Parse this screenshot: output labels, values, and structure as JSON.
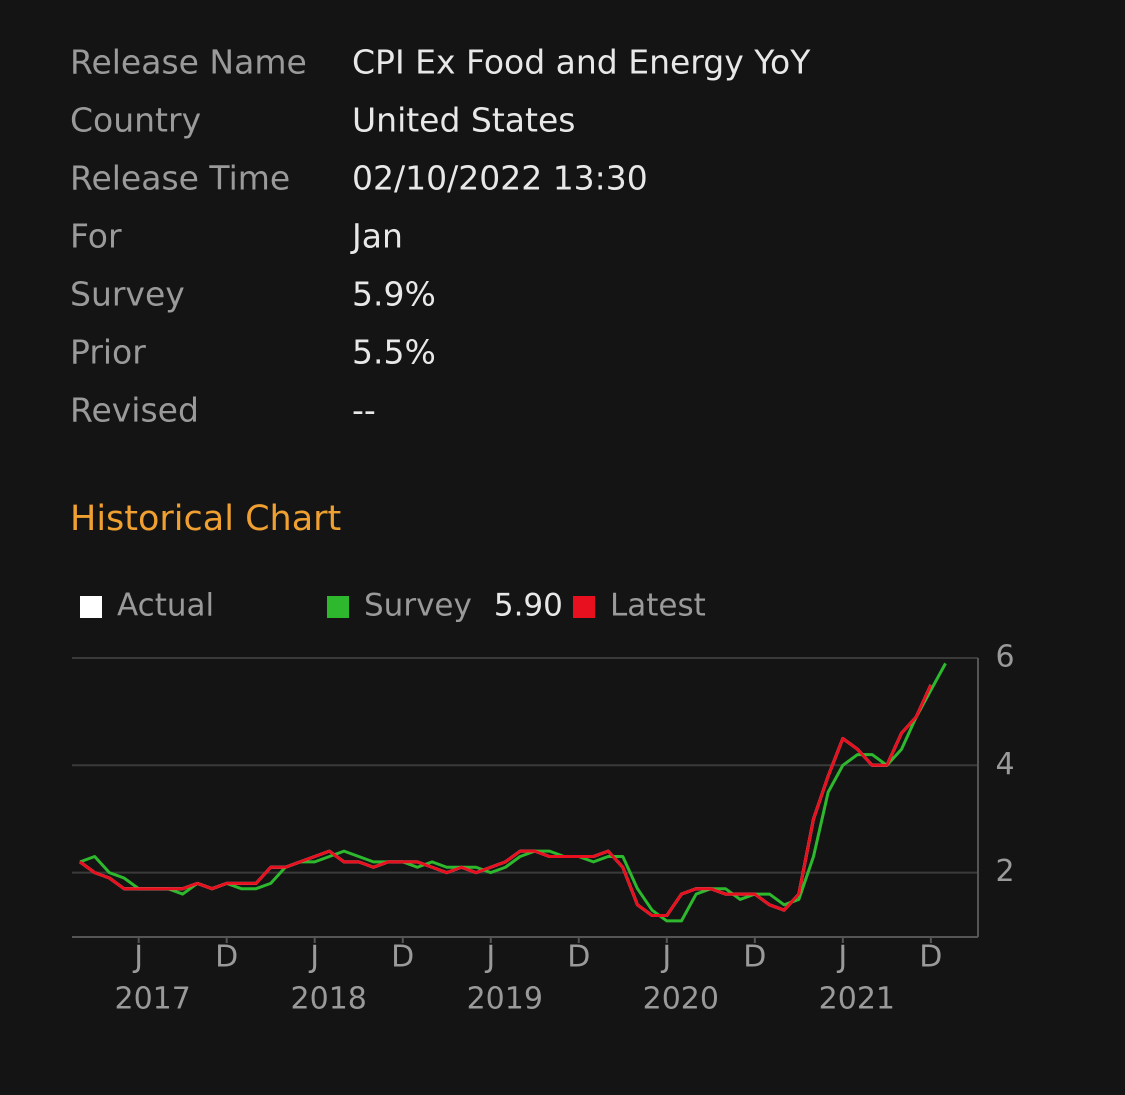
{
  "info": {
    "rows": [
      {
        "label": "Release Name",
        "value": "CPI Ex Food and Energy YoY"
      },
      {
        "label": "Country",
        "value": "United States"
      },
      {
        "label": "Release Time",
        "value": "02/10/2022 13:30"
      },
      {
        "label": "For",
        "value": "Jan"
      },
      {
        "label": "Survey",
        "value": "5.9%"
      },
      {
        "label": "Prior",
        "value": "5.5%"
      },
      {
        "label": "Revised",
        "value": "--"
      }
    ]
  },
  "section_title": "Historical Chart",
  "chart_data": {
    "type": "line",
    "categories": [
      null,
      null,
      null,
      null,
      "J",
      null,
      null,
      null,
      null,
      null,
      "D",
      null,
      null,
      null,
      null,
      null,
      "J",
      null,
      null,
      null,
      null,
      null,
      "D",
      null,
      null,
      null,
      null,
      null,
      "J",
      null,
      null,
      null,
      null,
      null,
      "D",
      null,
      null,
      null,
      null,
      null,
      "J",
      null,
      null,
      null,
      null,
      null,
      "D",
      null,
      null,
      null,
      null,
      null,
      "J",
      null,
      null,
      null,
      null,
      null,
      "D",
      null
    ],
    "years": [
      "2017",
      "2018",
      "2019",
      "2020",
      "2021"
    ],
    "series": [
      {
        "name": "Survey",
        "color": "#2db82d",
        "legend_value_label": "5.90",
        "values": [
          2.2,
          2.3,
          2.0,
          1.9,
          1.7,
          1.7,
          1.7,
          1.6,
          1.8,
          1.7,
          1.8,
          1.7,
          1.7,
          1.8,
          2.1,
          2.2,
          2.2,
          2.3,
          2.4,
          2.3,
          2.2,
          2.2,
          2.2,
          2.1,
          2.2,
          2.1,
          2.1,
          2.1,
          2.0,
          2.1,
          2.3,
          2.4,
          2.4,
          2.3,
          2.3,
          2.2,
          2.3,
          2.3,
          1.7,
          1.3,
          1.1,
          1.1,
          1.6,
          1.7,
          1.7,
          1.5,
          1.6,
          1.6,
          1.4,
          1.5,
          2.3,
          3.5,
          4.0,
          4.2,
          4.2,
          4.0,
          4.3,
          4.9,
          5.4,
          5.9
        ]
      },
      {
        "name": "Actual",
        "color": "#ffffff",
        "values": [
          2.2,
          2.0,
          1.9,
          1.7,
          1.7,
          1.7,
          1.7,
          1.7,
          1.8,
          1.7,
          1.8,
          1.8,
          1.8,
          2.1,
          2.1,
          2.2,
          2.3,
          2.4,
          2.2,
          2.2,
          2.1,
          2.2,
          2.2,
          2.2,
          2.1,
          2.0,
          2.1,
          2.0,
          2.1,
          2.2,
          2.4,
          2.4,
          2.3,
          2.3,
          2.3,
          2.3,
          2.4,
          2.1,
          1.4,
          1.2,
          1.2,
          1.6,
          1.7,
          1.7,
          1.6,
          1.6,
          1.6,
          1.4,
          1.3,
          1.6,
          3.0,
          3.8,
          4.5,
          4.3,
          4.0,
          4.0,
          4.6,
          4.9,
          5.5,
          null
        ]
      },
      {
        "name": "Latest",
        "color": "#e8101e",
        "values": [
          2.2,
          2.0,
          1.9,
          1.7,
          1.7,
          1.7,
          1.7,
          1.7,
          1.8,
          1.7,
          1.8,
          1.8,
          1.8,
          2.1,
          2.1,
          2.2,
          2.3,
          2.4,
          2.2,
          2.2,
          2.1,
          2.2,
          2.2,
          2.2,
          2.1,
          2.0,
          2.1,
          2.0,
          2.1,
          2.2,
          2.4,
          2.4,
          2.3,
          2.3,
          2.3,
          2.3,
          2.4,
          2.1,
          1.4,
          1.2,
          1.2,
          1.6,
          1.7,
          1.7,
          1.6,
          1.6,
          1.6,
          1.4,
          1.3,
          1.6,
          3.0,
          3.8,
          4.5,
          4.3,
          4.0,
          4.0,
          4.6,
          4.9,
          5.5,
          null
        ]
      }
    ],
    "ylim": [
      0.8,
      6
    ],
    "yticks": [
      2,
      4,
      6
    ],
    "grid": true
  }
}
